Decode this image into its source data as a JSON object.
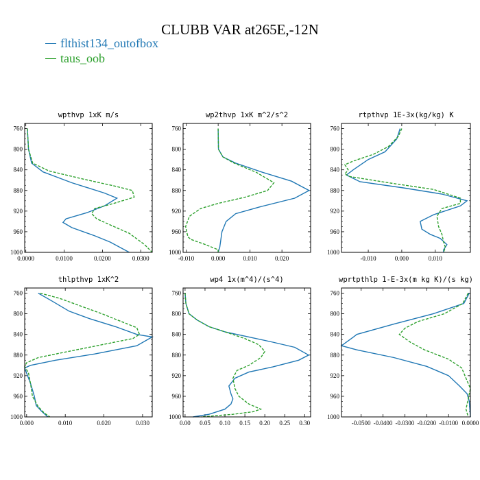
{
  "title": "CLUBB VAR at265E,-12N",
  "legend": [
    {
      "name": "flthist134_outofbox",
      "color": "#1f77b4",
      "dash": false
    },
    {
      "name": "taus_oob",
      "color": "#2ca02c",
      "dash": true
    }
  ],
  "chart_data": [
    {
      "type": "line",
      "title": "wpthvp  1xK m/s",
      "xlim": [
        -0.0003,
        0.033
      ],
      "ylim": [
        1000,
        750
      ],
      "xticks": [
        0.0,
        0.01,
        0.02,
        0.03
      ],
      "xtick_labels": [
        "0.0000",
        "0.0100",
        "0.0200",
        "0.0300"
      ],
      "yticks": [
        760,
        800,
        840,
        880,
        920,
        960,
        1000
      ],
      "series": [
        {
          "name": "flthist134_outofbox",
          "points": [
            [
              0.0004,
              760
            ],
            [
              0.0007,
              800
            ],
            [
              0.0015,
              827
            ],
            [
              0.0045,
              844
            ],
            [
              0.012,
              865
            ],
            [
              0.0205,
              885
            ],
            [
              0.0238,
              895
            ],
            [
              0.0205,
              910
            ],
            [
              0.016,
              923
            ],
            [
              0.0105,
              935
            ],
            [
              0.0097,
              942
            ],
            [
              0.012,
              952
            ],
            [
              0.018,
              968
            ],
            [
              0.022,
              980
            ],
            [
              0.027,
              1000
            ]
          ]
        },
        {
          "name": "taus_oob",
          "points": [
            [
              0.0004,
              760
            ],
            [
              0.0007,
              800
            ],
            [
              0.0018,
              827
            ],
            [
              0.006,
              842
            ],
            [
              0.015,
              858
            ],
            [
              0.0235,
              872
            ],
            [
              0.0278,
              880
            ],
            [
              0.0283,
              893
            ],
            [
              0.023,
              905
            ],
            [
              0.018,
              915
            ],
            [
              0.0172,
              925
            ],
            [
              0.0185,
              935
            ],
            [
              0.023,
              950
            ],
            [
              0.027,
              963
            ],
            [
              0.031,
              985
            ],
            [
              0.033,
              1000
            ]
          ]
        }
      ]
    },
    {
      "type": "line",
      "title": "wp2thvp  1xK m^2/s^2",
      "xlim": [
        -0.011,
        0.029
      ],
      "ylim": [
        1000,
        750
      ],
      "xticks": [
        -0.01,
        0.0,
        0.01,
        0.02
      ],
      "xtick_labels": [
        "-0.010",
        "0.000",
        "0.010",
        "0.020"
      ],
      "yticks": [
        760,
        800,
        840,
        880,
        920,
        960,
        1000
      ],
      "series": [
        {
          "name": "flthist134_outofbox",
          "points": [
            [
              0.0,
              760
            ],
            [
              0.0001,
              800
            ],
            [
              0.0015,
              815
            ],
            [
              0.0055,
              827
            ],
            [
              0.014,
              845
            ],
            [
              0.023,
              862
            ],
            [
              0.0285,
              880
            ],
            [
              0.024,
              895
            ],
            [
              0.013,
              912
            ],
            [
              0.0055,
              925
            ],
            [
              0.0025,
              940
            ],
            [
              0.0012,
              960
            ],
            [
              0.0005,
              990
            ],
            [
              0.0,
              1000
            ]
          ]
        },
        {
          "name": "taus_oob",
          "points": [
            [
              0.0,
              760
            ],
            [
              0.0001,
              800
            ],
            [
              0.0015,
              815
            ],
            [
              0.005,
              827
            ],
            [
              0.012,
              845
            ],
            [
              0.0175,
              865
            ],
            [
              0.0155,
              880
            ],
            [
              0.0085,
              893
            ],
            [
              0.0,
              905
            ],
            [
              -0.0055,
              915
            ],
            [
              -0.009,
              930
            ],
            [
              -0.0102,
              950
            ],
            [
              -0.0095,
              970
            ],
            [
              -0.0085,
              975
            ],
            [
              -0.004,
              985
            ],
            [
              0.0,
              995
            ],
            [
              0.0,
              1000
            ]
          ]
        }
      ]
    },
    {
      "type": "line",
      "title": "rtpthvp  1E-3x(kg/kg) K",
      "xlim": [
        -0.018,
        0.0205
      ],
      "ylim": [
        1000,
        750
      ],
      "xticks": [
        -0.01,
        0.0,
        0.01
      ],
      "xtick_labels": [
        "-0.010",
        "0.000",
        "0.010"
      ],
      "yticks": [
        760,
        800,
        840,
        880,
        920,
        960,
        1000
      ],
      "series": [
        {
          "name": "flthist134_outofbox",
          "points": [
            [
              -0.0005,
              760
            ],
            [
              -0.0015,
              780
            ],
            [
              -0.005,
              805
            ],
            [
              -0.01,
              820
            ],
            [
              -0.0145,
              840
            ],
            [
              -0.0165,
              850
            ],
            [
              -0.0125,
              863
            ],
            [
              0.0005,
              875
            ],
            [
              0.012,
              887
            ],
            [
              0.0195,
              900
            ],
            [
              0.0175,
              910
            ],
            [
              0.0095,
              927
            ],
            [
              0.0055,
              940
            ],
            [
              0.006,
              955
            ],
            [
              0.0085,
              965
            ],
            [
              0.0115,
              973
            ],
            [
              0.0135,
              985
            ],
            [
              0.0125,
              995
            ],
            [
              0.0125,
              1000
            ]
          ]
        },
        {
          "name": "taus_oob",
          "points": [
            [
              0.0,
              760
            ],
            [
              -0.001,
              775
            ],
            [
              -0.004,
              795
            ],
            [
              -0.0085,
              810
            ],
            [
              -0.0145,
              823
            ],
            [
              -0.017,
              830
            ],
            [
              -0.016,
              840
            ],
            [
              -0.017,
              848
            ],
            [
              -0.0155,
              853
            ],
            [
              -0.004,
              865
            ],
            [
              0.0095,
              878
            ],
            [
              0.0175,
              895
            ],
            [
              0.0175,
              905
            ],
            [
              0.012,
              915
            ],
            [
              0.0105,
              930
            ],
            [
              0.011,
              950
            ],
            [
              0.012,
              965
            ],
            [
              0.0125,
              980
            ],
            [
              0.013,
              990
            ],
            [
              0.0125,
              1000
            ]
          ]
        }
      ]
    },
    {
      "type": "line",
      "title": "thlpthvp  1xK^2",
      "xlim": [
        -0.0005,
        0.0325
      ],
      "ylim": [
        1000,
        750
      ],
      "xticks": [
        0.0,
        0.01,
        0.02,
        0.03
      ],
      "xtick_labels": [
        "0.000",
        "0.010",
        "0.020",
        "0.030"
      ],
      "yticks": [
        760,
        800,
        840,
        880,
        920,
        960,
        1000
      ],
      "series": [
        {
          "name": "flthist134_outofbox",
          "points": [
            [
              0.003,
              760
            ],
            [
              0.0065,
              775
            ],
            [
              0.011,
              795
            ],
            [
              0.0165,
              810
            ],
            [
              0.023,
              825
            ],
            [
              0.0285,
              840
            ],
            [
              0.0325,
              845
            ],
            [
              0.0285,
              862
            ],
            [
              0.0175,
              878
            ],
            [
              0.0075,
              890
            ],
            [
              0.001,
              900
            ],
            [
              -0.0005,
              905
            ],
            [
              0.0,
              915
            ],
            [
              0.001,
              935
            ],
            [
              0.002,
              960
            ],
            [
              0.0025,
              978
            ],
            [
              0.004,
              990
            ],
            [
              0.0055,
              1000
            ]
          ]
        },
        {
          "name": "taus_oob",
          "points": [
            [
              0.0035,
              760
            ],
            [
              0.0085,
              770
            ],
            [
              0.014,
              785
            ],
            [
              0.0195,
              800
            ],
            [
              0.0245,
              815
            ],
            [
              0.0285,
              827
            ],
            [
              0.0292,
              840
            ],
            [
              0.0275,
              848
            ],
            [
              0.0195,
              860
            ],
            [
              0.0095,
              875
            ],
            [
              0.003,
              885
            ],
            [
              0.0,
              895
            ],
            [
              -0.0005,
              902
            ],
            [
              0.0005,
              915
            ],
            [
              0.001,
              935
            ],
            [
              0.0015,
              960
            ],
            [
              0.003,
              980
            ],
            [
              0.0045,
              992
            ],
            [
              0.006,
              1000
            ]
          ]
        }
      ]
    },
    {
      "type": "line",
      "title": "wp4  1x(m^4)/(s^4)",
      "xlim": [
        -0.005,
        0.315
      ],
      "ylim": [
        1000,
        750
      ],
      "xticks": [
        0.0,
        0.05,
        0.1,
        0.15,
        0.2,
        0.25,
        0.3
      ],
      "xtick_labels": [
        "0.00",
        "0.05",
        "0.10",
        "0.15",
        "0.20",
        "0.25",
        "0.30"
      ],
      "yticks": [
        760,
        800,
        840,
        880,
        920,
        960,
        1000
      ],
      "series": [
        {
          "name": "flthist134_outofbox",
          "points": [
            [
              0.0,
              760
            ],
            [
              0.002,
              780
            ],
            [
              0.01,
              800
            ],
            [
              0.03,
              812
            ],
            [
              0.06,
              825
            ],
            [
              0.1,
              835
            ],
            [
              0.16,
              845
            ],
            [
              0.22,
              855
            ],
            [
              0.275,
              865
            ],
            [
              0.31,
              880
            ],
            [
              0.285,
              890
            ],
            [
              0.22,
              903
            ],
            [
              0.16,
              913
            ],
            [
              0.125,
              925
            ],
            [
              0.11,
              940
            ],
            [
              0.115,
              955
            ],
            [
              0.12,
              965
            ],
            [
              0.115,
              975
            ],
            [
              0.1,
              985
            ],
            [
              0.06,
              995
            ],
            [
              0.02,
              1000
            ]
          ]
        },
        {
          "name": "taus_oob",
          "points": [
            [
              0.0,
              760
            ],
            [
              0.002,
              780
            ],
            [
              0.01,
              800
            ],
            [
              0.03,
              812
            ],
            [
              0.06,
              825
            ],
            [
              0.1,
              835
            ],
            [
              0.15,
              848
            ],
            [
              0.185,
              860
            ],
            [
              0.2,
              873
            ],
            [
              0.19,
              885
            ],
            [
              0.16,
              900
            ],
            [
              0.13,
              910
            ],
            [
              0.12,
              925
            ],
            [
              0.125,
              945
            ],
            [
              0.135,
              960
            ],
            [
              0.16,
              975
            ],
            [
              0.19,
              985
            ],
            [
              0.17,
              990
            ],
            [
              0.12,
              995
            ],
            [
              0.04,
              1000
            ]
          ]
        }
      ]
    },
    {
      "type": "line",
      "title": "wprtpthlp  1-E-3x(m kg K)/(s kg)",
      "xlim": [
        -0.059,
        0.0
      ],
      "ylim": [
        1000,
        750
      ],
      "xticks": [
        -0.05,
        -0.04,
        -0.03,
        -0.02,
        -0.01,
        0.0
      ],
      "xtick_labels": [
        "-0.0500",
        "-0.0400",
        "-0.0300",
        "-0.0200",
        "-0.0100",
        "0.0000"
      ],
      "yticks": [
        760,
        800,
        840,
        880,
        920,
        960,
        1000
      ],
      "series": [
        {
          "name": "flthist134_outofbox",
          "points": [
            [
              -0.0005,
              760
            ],
            [
              -0.003,
              780
            ],
            [
              -0.017,
              800
            ],
            [
              -0.035,
              820
            ],
            [
              -0.052,
              840
            ],
            [
              -0.0535,
              845
            ],
            [
              -0.059,
              862
            ],
            [
              -0.052,
              870
            ],
            [
              -0.035,
              885
            ],
            [
              -0.02,
              902
            ],
            [
              -0.01,
              920
            ],
            [
              -0.005,
              940
            ],
            [
              -0.0015,
              955
            ],
            [
              -0.0005,
              970
            ],
            [
              0.0,
              1000
            ]
          ]
        },
        {
          "name": "taus_oob",
          "points": [
            [
              -0.001,
              760
            ],
            [
              -0.0035,
              780
            ],
            [
              -0.012,
              800
            ],
            [
              -0.024,
              815
            ],
            [
              -0.03,
              828
            ],
            [
              -0.0325,
              840
            ],
            [
              -0.0275,
              855
            ],
            [
              -0.021,
              870
            ],
            [
              -0.01,
              888
            ],
            [
              -0.004,
              905
            ],
            [
              -0.002,
              925
            ],
            [
              0.0,
              945
            ],
            [
              -0.001,
              965
            ],
            [
              -0.002,
              985
            ],
            [
              -0.001,
              1000
            ]
          ]
        }
      ]
    }
  ]
}
